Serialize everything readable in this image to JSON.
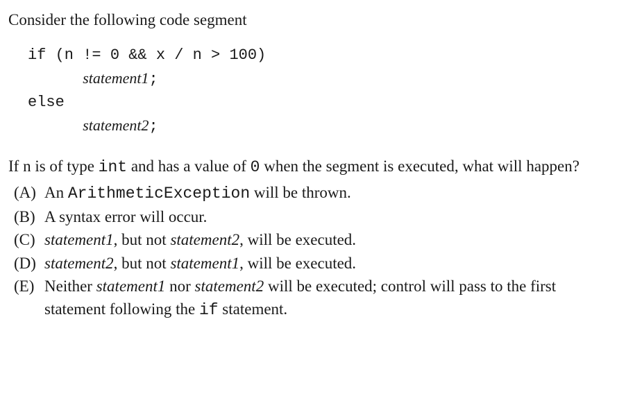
{
  "intro": "Consider the following code segment",
  "code": {
    "line1_pre": "if (n != 0 && x / n > 100)",
    "line2_indent": "      ",
    "line2_stmt": "statement1",
    "line2_post": ";",
    "line3": "else",
    "line4_indent": "      ",
    "line4_stmt": "statement2",
    "line4_post": ";"
  },
  "question": {
    "part1": "If n is of type ",
    "code1": "int",
    "part2": " and has a value of ",
    "code2": "0",
    "part3": " when the segment is executed, what will happen?"
  },
  "options": {
    "a": {
      "letter": "(A)",
      "pre": "An ",
      "code": "ArithmeticException",
      "post": " will be thrown."
    },
    "b": {
      "letter": "(B)",
      "text": "A syntax error will occur."
    },
    "c": {
      "letter": "(C)",
      "stmt1": "statement1",
      "mid": ", but not ",
      "stmt2": "statement2",
      "post": ", will be executed."
    },
    "d": {
      "letter": "(D)",
      "stmt1": "statement2",
      "mid": ", but not ",
      "stmt2": "statement1",
      "post": ", will be executed."
    },
    "e": {
      "letter": "(E)",
      "pre": "Neither ",
      "stmt1": "statement1",
      "mid": " nor ",
      "stmt2": "statement2",
      "post1": " will be executed; control will pass to the first statement following the ",
      "code": "if",
      "post2": " statement."
    }
  }
}
